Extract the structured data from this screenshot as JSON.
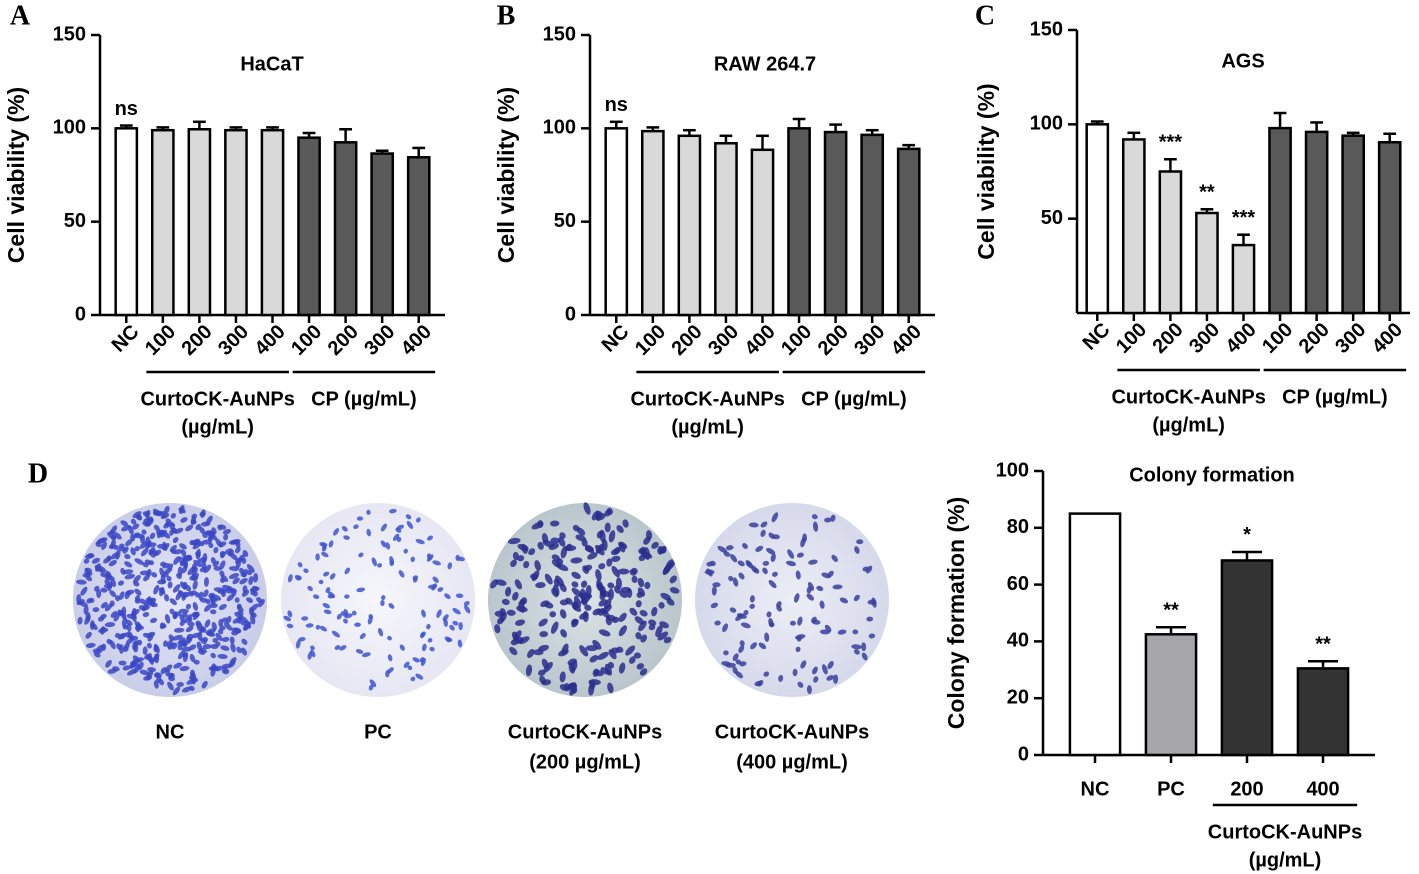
{
  "chart_data": [
    {
      "type": "bar",
      "panel_label": "A",
      "title": "HaCaT",
      "y_label": "Cell viability (%)",
      "categories": [
        "NC",
        "100",
        "200",
        "300",
        "400",
        "100",
        "200",
        "300",
        "400"
      ],
      "values": [
        100,
        99,
        99.5,
        99,
        99,
        95,
        92.5,
        86.5,
        84.5
      ],
      "errors": [
        1.5,
        1.5,
        4,
        1.5,
        1.5,
        2.5,
        7,
        1.5,
        5
      ],
      "colors": [
        "#ffffff",
        "#d9d9d9",
        "#d9d9d9",
        "#d9d9d9",
        "#d9d9d9",
        "#595959",
        "#595959",
        "#595959",
        "#595959"
      ],
      "annotations": [
        "ns",
        null,
        null,
        null,
        null,
        null,
        null,
        null,
        null
      ],
      "groups": [
        {
          "label": [
            "CurtoCK-AuNPs",
            "(µg/mL)"
          ]
        },
        {
          "label": [
            "CP (µg/mL)"
          ]
        }
      ],
      "ylim": [
        0,
        150
      ],
      "yticks": [
        0,
        50,
        100,
        150
      ]
    },
    {
      "type": "bar",
      "panel_label": "B",
      "title": "RAW 264.7",
      "y_label": "Cell viability (%)",
      "categories": [
        "NC",
        "100",
        "200",
        "300",
        "400",
        "100",
        "200",
        "300",
        "400"
      ],
      "values": [
        100,
        98.5,
        96,
        92,
        88.5,
        100,
        98,
        96.5,
        89
      ],
      "errors": [
        3.5,
        2,
        3,
        4,
        7.5,
        5,
        4,
        2.5,
        2
      ],
      "colors": [
        "#ffffff",
        "#d9d9d9",
        "#d9d9d9",
        "#d9d9d9",
        "#d9d9d9",
        "#595959",
        "#595959",
        "#595959",
        "#595959"
      ],
      "annotations": [
        "ns",
        null,
        null,
        null,
        null,
        null,
        null,
        null,
        null
      ],
      "groups": [
        {
          "label": [
            "CurtoCK-AuNPs",
            "(µg/mL)"
          ]
        },
        {
          "label": [
            "CP (µg/mL)"
          ]
        }
      ],
      "ylim": [
        0,
        150
      ],
      "yticks": [
        0,
        50,
        100,
        150
      ]
    },
    {
      "type": "bar",
      "panel_label": "C",
      "title": "AGS",
      "y_label": "Cell viability (%)",
      "categories": [
        "NC",
        "100",
        "200",
        "300",
        "400",
        "100",
        "200",
        "300",
        "400"
      ],
      "values": [
        100,
        92,
        75,
        53,
        36,
        98,
        96,
        94,
        90.5
      ],
      "errors": [
        1.5,
        3.5,
        6.5,
        2,
        5.5,
        8,
        5,
        1.5,
        4.5
      ],
      "colors": [
        "#ffffff",
        "#d9d9d9",
        "#d9d9d9",
        "#d9d9d9",
        "#d9d9d9",
        "#595959",
        "#595959",
        "#595959",
        "#595959"
      ],
      "annotations": [
        null,
        null,
        "***",
        "**",
        "***",
        null,
        null,
        null,
        null
      ],
      "groups": [
        {
          "label": [
            "CurtoCK-AuNPs",
            "(µg/mL)"
          ]
        },
        {
          "label": [
            "CP (µg/mL)"
          ]
        }
      ],
      "ylim": [
        0,
        150
      ],
      "yticks": [
        50,
        100,
        150
      ]
    },
    {
      "type": "bar",
      "title": "Colony formation",
      "y_label": "Colony formation (%)",
      "categories": [
        "NC",
        "PC",
        "200",
        "400"
      ],
      "values": [
        85,
        42.5,
        68.5,
        30.5
      ],
      "errors": [
        null,
        2.5,
        3,
        2.5
      ],
      "colors": [
        "#ffffff",
        "#a6a6aa",
        "#333333",
        "#333333"
      ],
      "annotations": [
        null,
        "**",
        "*",
        "**"
      ],
      "groups": [
        {
          "label": [
            "CurtoCK-AuNPs",
            "(µg/mL)"
          ]
        }
      ],
      "ylim": [
        0,
        100
      ],
      "yticks": [
        0,
        20,
        40,
        60,
        80,
        100
      ]
    }
  ],
  "images": {
    "panel_label": "D",
    "captions": [
      [
        "NC"
      ],
      [
        "PC"
      ],
      [
        "CurtoCK-AuNPs",
        "(200 µg/mL)"
      ],
      [
        "CurtoCK-AuNPs",
        "(400 µg/mL)"
      ]
    ]
  }
}
